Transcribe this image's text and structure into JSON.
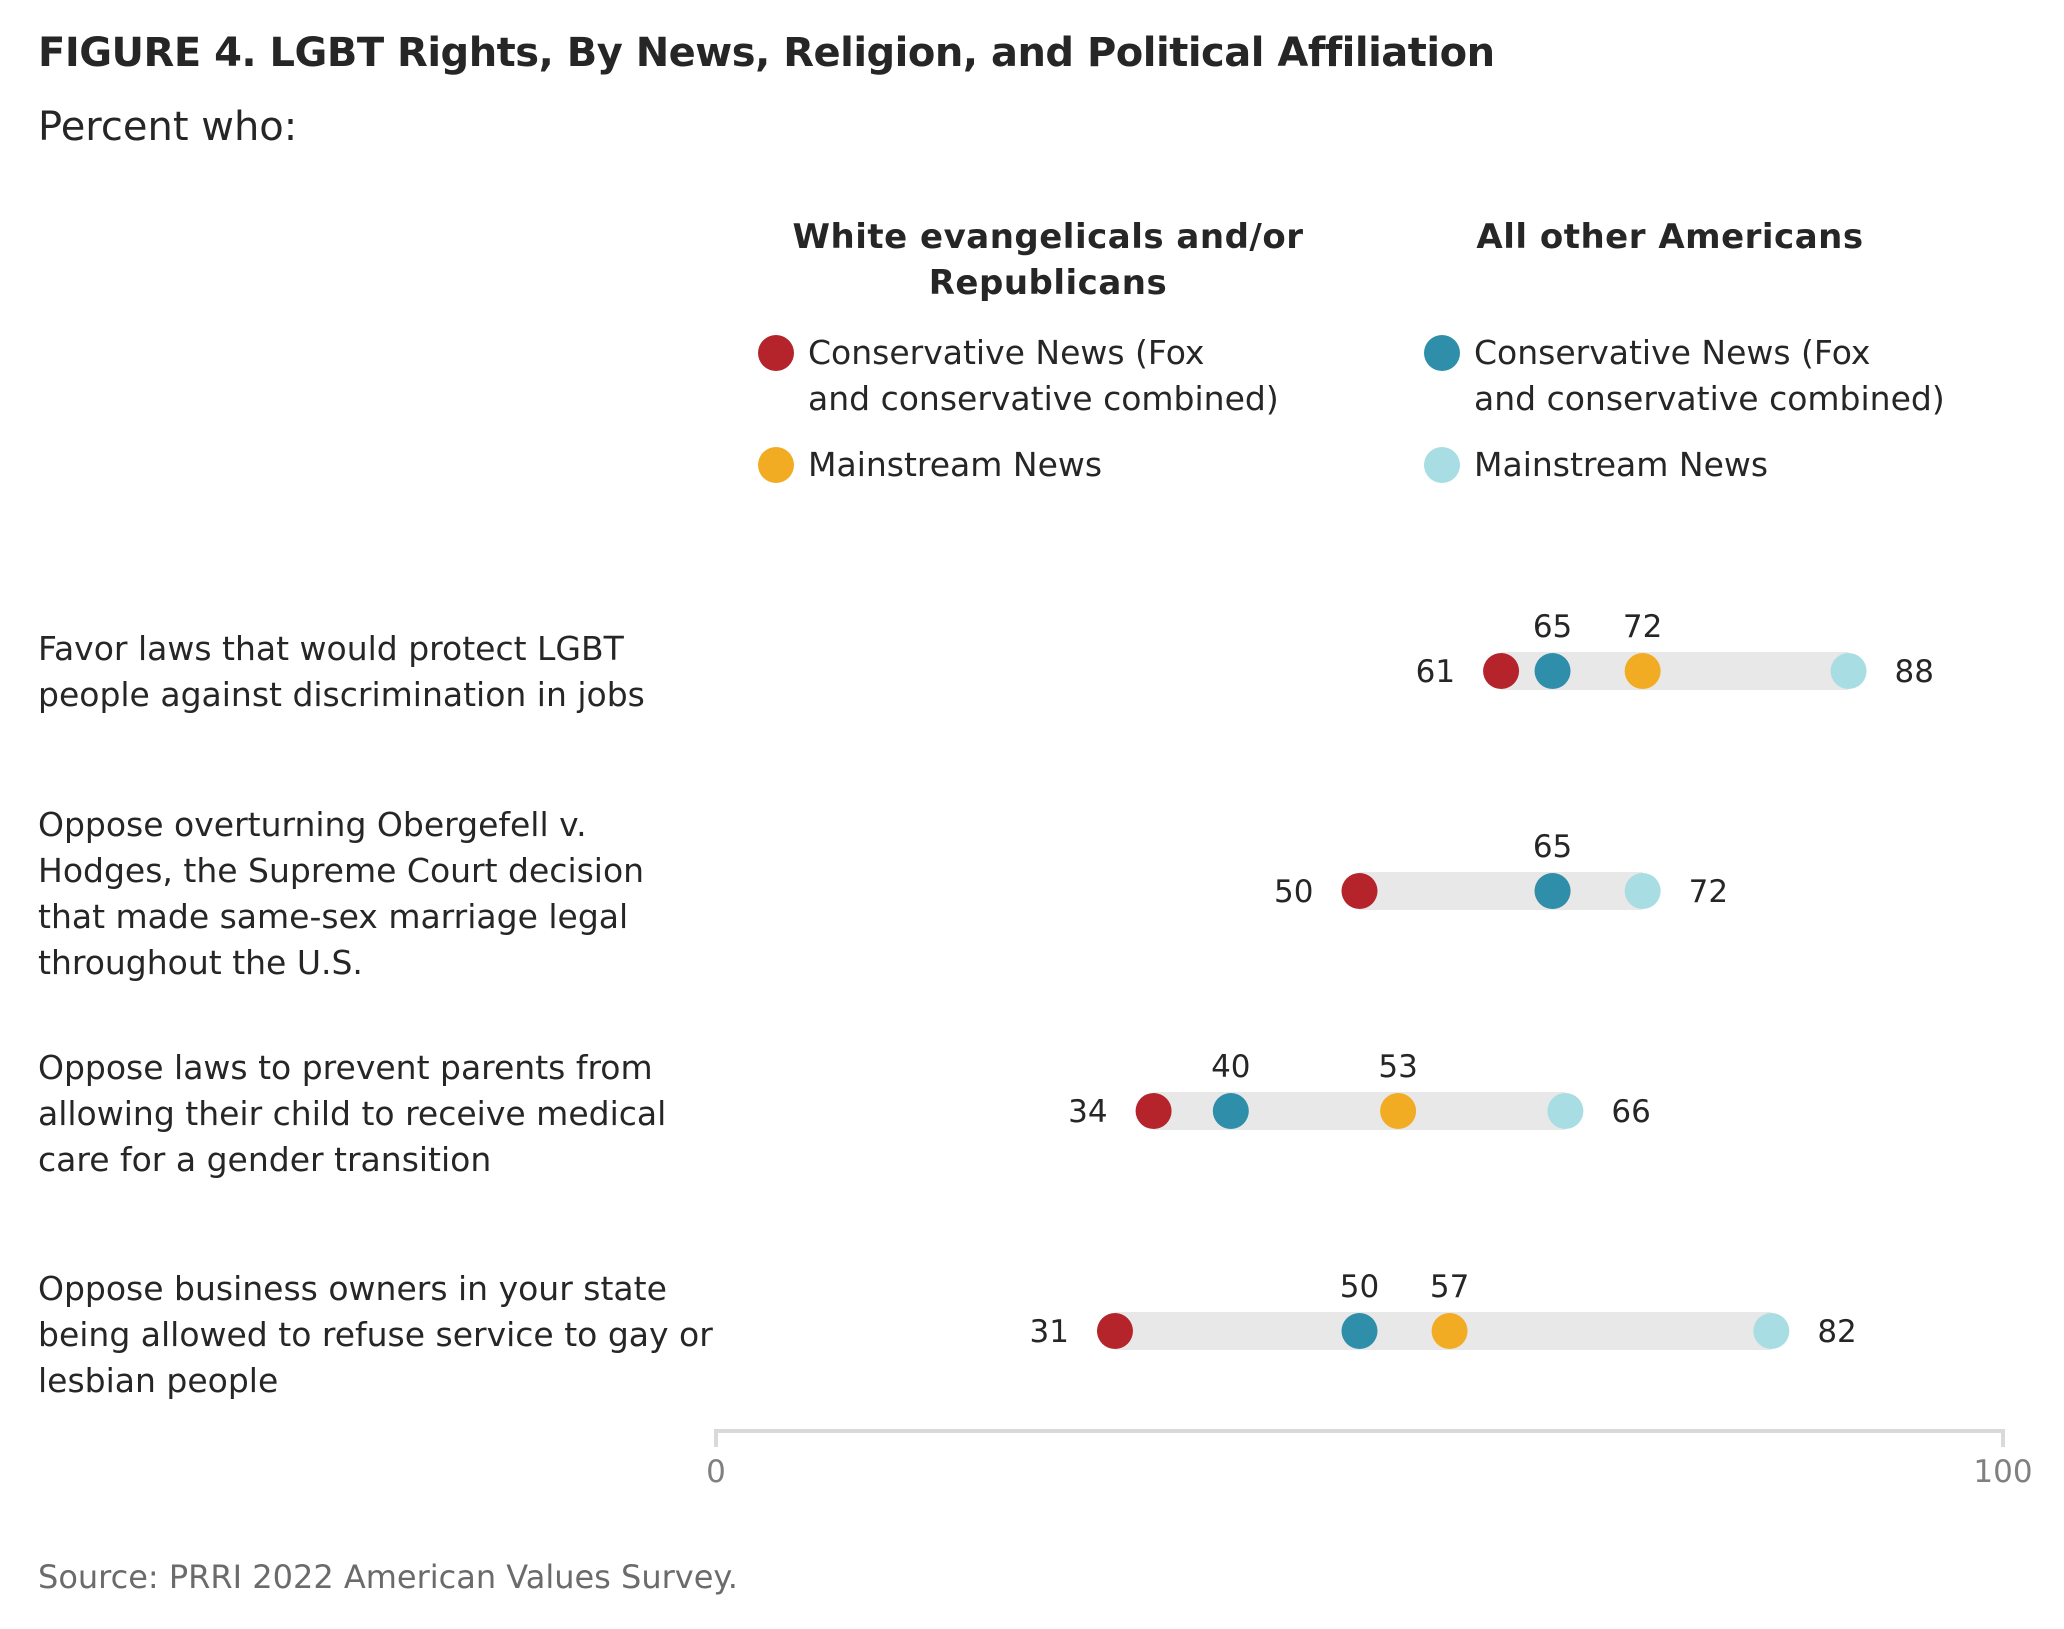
{
  "title": "FIGURE 4.  LGBT Rights, By News, Religion, and Political Affiliation",
  "subtitle": "Percent who:",
  "groups": [
    {
      "heading": "White evangelicals\nand/or Republicans"
    },
    {
      "heading": "All other\nAmericans"
    }
  ],
  "legend": [
    {
      "label": "Conservative News (Fox\nand conservative combined)",
      "color": "#b5232b"
    },
    {
      "label": "Mainstream News",
      "color": "#f2ac23"
    },
    {
      "label": "Conservative News (Fox\nand conservative combined)",
      "color": "#2f8ea9"
    },
    {
      "label": "Mainstream News",
      "color": "#a8dde4"
    }
  ],
  "source": "Source: PRRI 2022 American Values Survey.",
  "chart_data": {
    "type": "dot",
    "xlim": [
      0,
      100
    ],
    "x_ticks": [
      "0",
      "100"
    ],
    "categories": [
      "Favor laws that would protect LGBT people against discrimination in jobs",
      "Oppose overturning Obergefell v. Hodges, the Supreme Court decision that made same-sex marriage legal throughout the U.S.",
      "Oppose laws to prevent parents from allowing their child to receive medical care for a gender transition",
      "Oppose business owners in your state being allowed to refuse service to gay or lesbian people"
    ],
    "series": [
      {
        "color": "#b5232b",
        "values": [
          61,
          50,
          34,
          31
        ]
      },
      {
        "color": "#f2ac23",
        "values": [
          72,
          65,
          53,
          57
        ]
      },
      {
        "color": "#2f8ea9",
        "values": [
          65,
          65,
          40,
          50
        ]
      },
      {
        "color": "#a8dde4",
        "values": [
          88,
          72,
          66,
          82
        ]
      }
    ]
  }
}
